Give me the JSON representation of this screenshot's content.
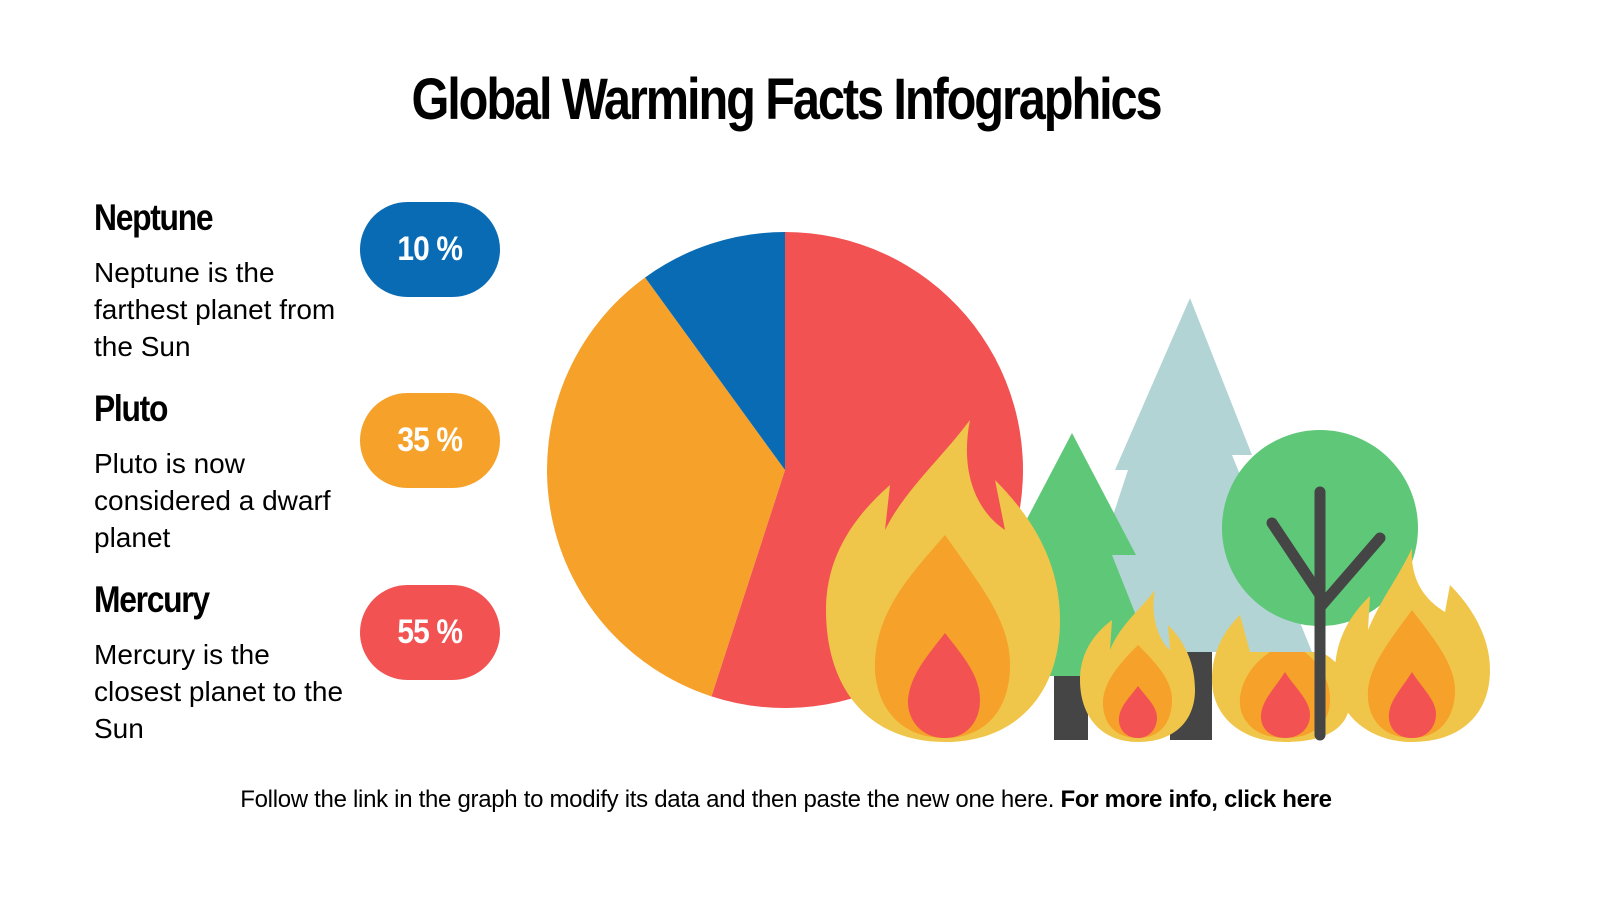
{
  "title": "Global Warming Facts Infographics",
  "items": [
    {
      "name": "Neptune",
      "description": "Neptune is the farthest planet from the Sun",
      "value_label": "10 %",
      "color": "#0a6bb5"
    },
    {
      "name": "Pluto",
      "description": "Pluto is now considered a dwarf planet",
      "value_label": "35 %",
      "color": "#f5a12a"
    },
    {
      "name": "Mercury",
      "description": "Mercury is the closest planet to the Sun",
      "value_label": "55 %",
      "color": "#f25252"
    }
  ],
  "footer": {
    "text": "Follow the link in the graph to modify its data and then paste the new one here.",
    "link": "For more info, click here"
  },
  "illustration": {
    "icons": [
      "fire-icon",
      "pine-tree-icon",
      "round-tree-icon"
    ],
    "colors": {
      "flame_outer": "#f0c64a",
      "flame_mid": "#f5a12a",
      "flame_inner": "#f25252",
      "pine_green": "#5ec878",
      "pine_pale": "#b2d4d4",
      "trunk": "#454545"
    }
  },
  "chart_data": {
    "type": "pie",
    "title": "Global Warming Facts Infographics",
    "categories": [
      "Mercury",
      "Pluto",
      "Neptune"
    ],
    "values": [
      55,
      35,
      10
    ],
    "colors": [
      "#f25252",
      "#f5a12a",
      "#0a6bb5"
    ],
    "start_angle": "12 o'clock, clockwise",
    "legend": "left side labels with percentage pills"
  }
}
